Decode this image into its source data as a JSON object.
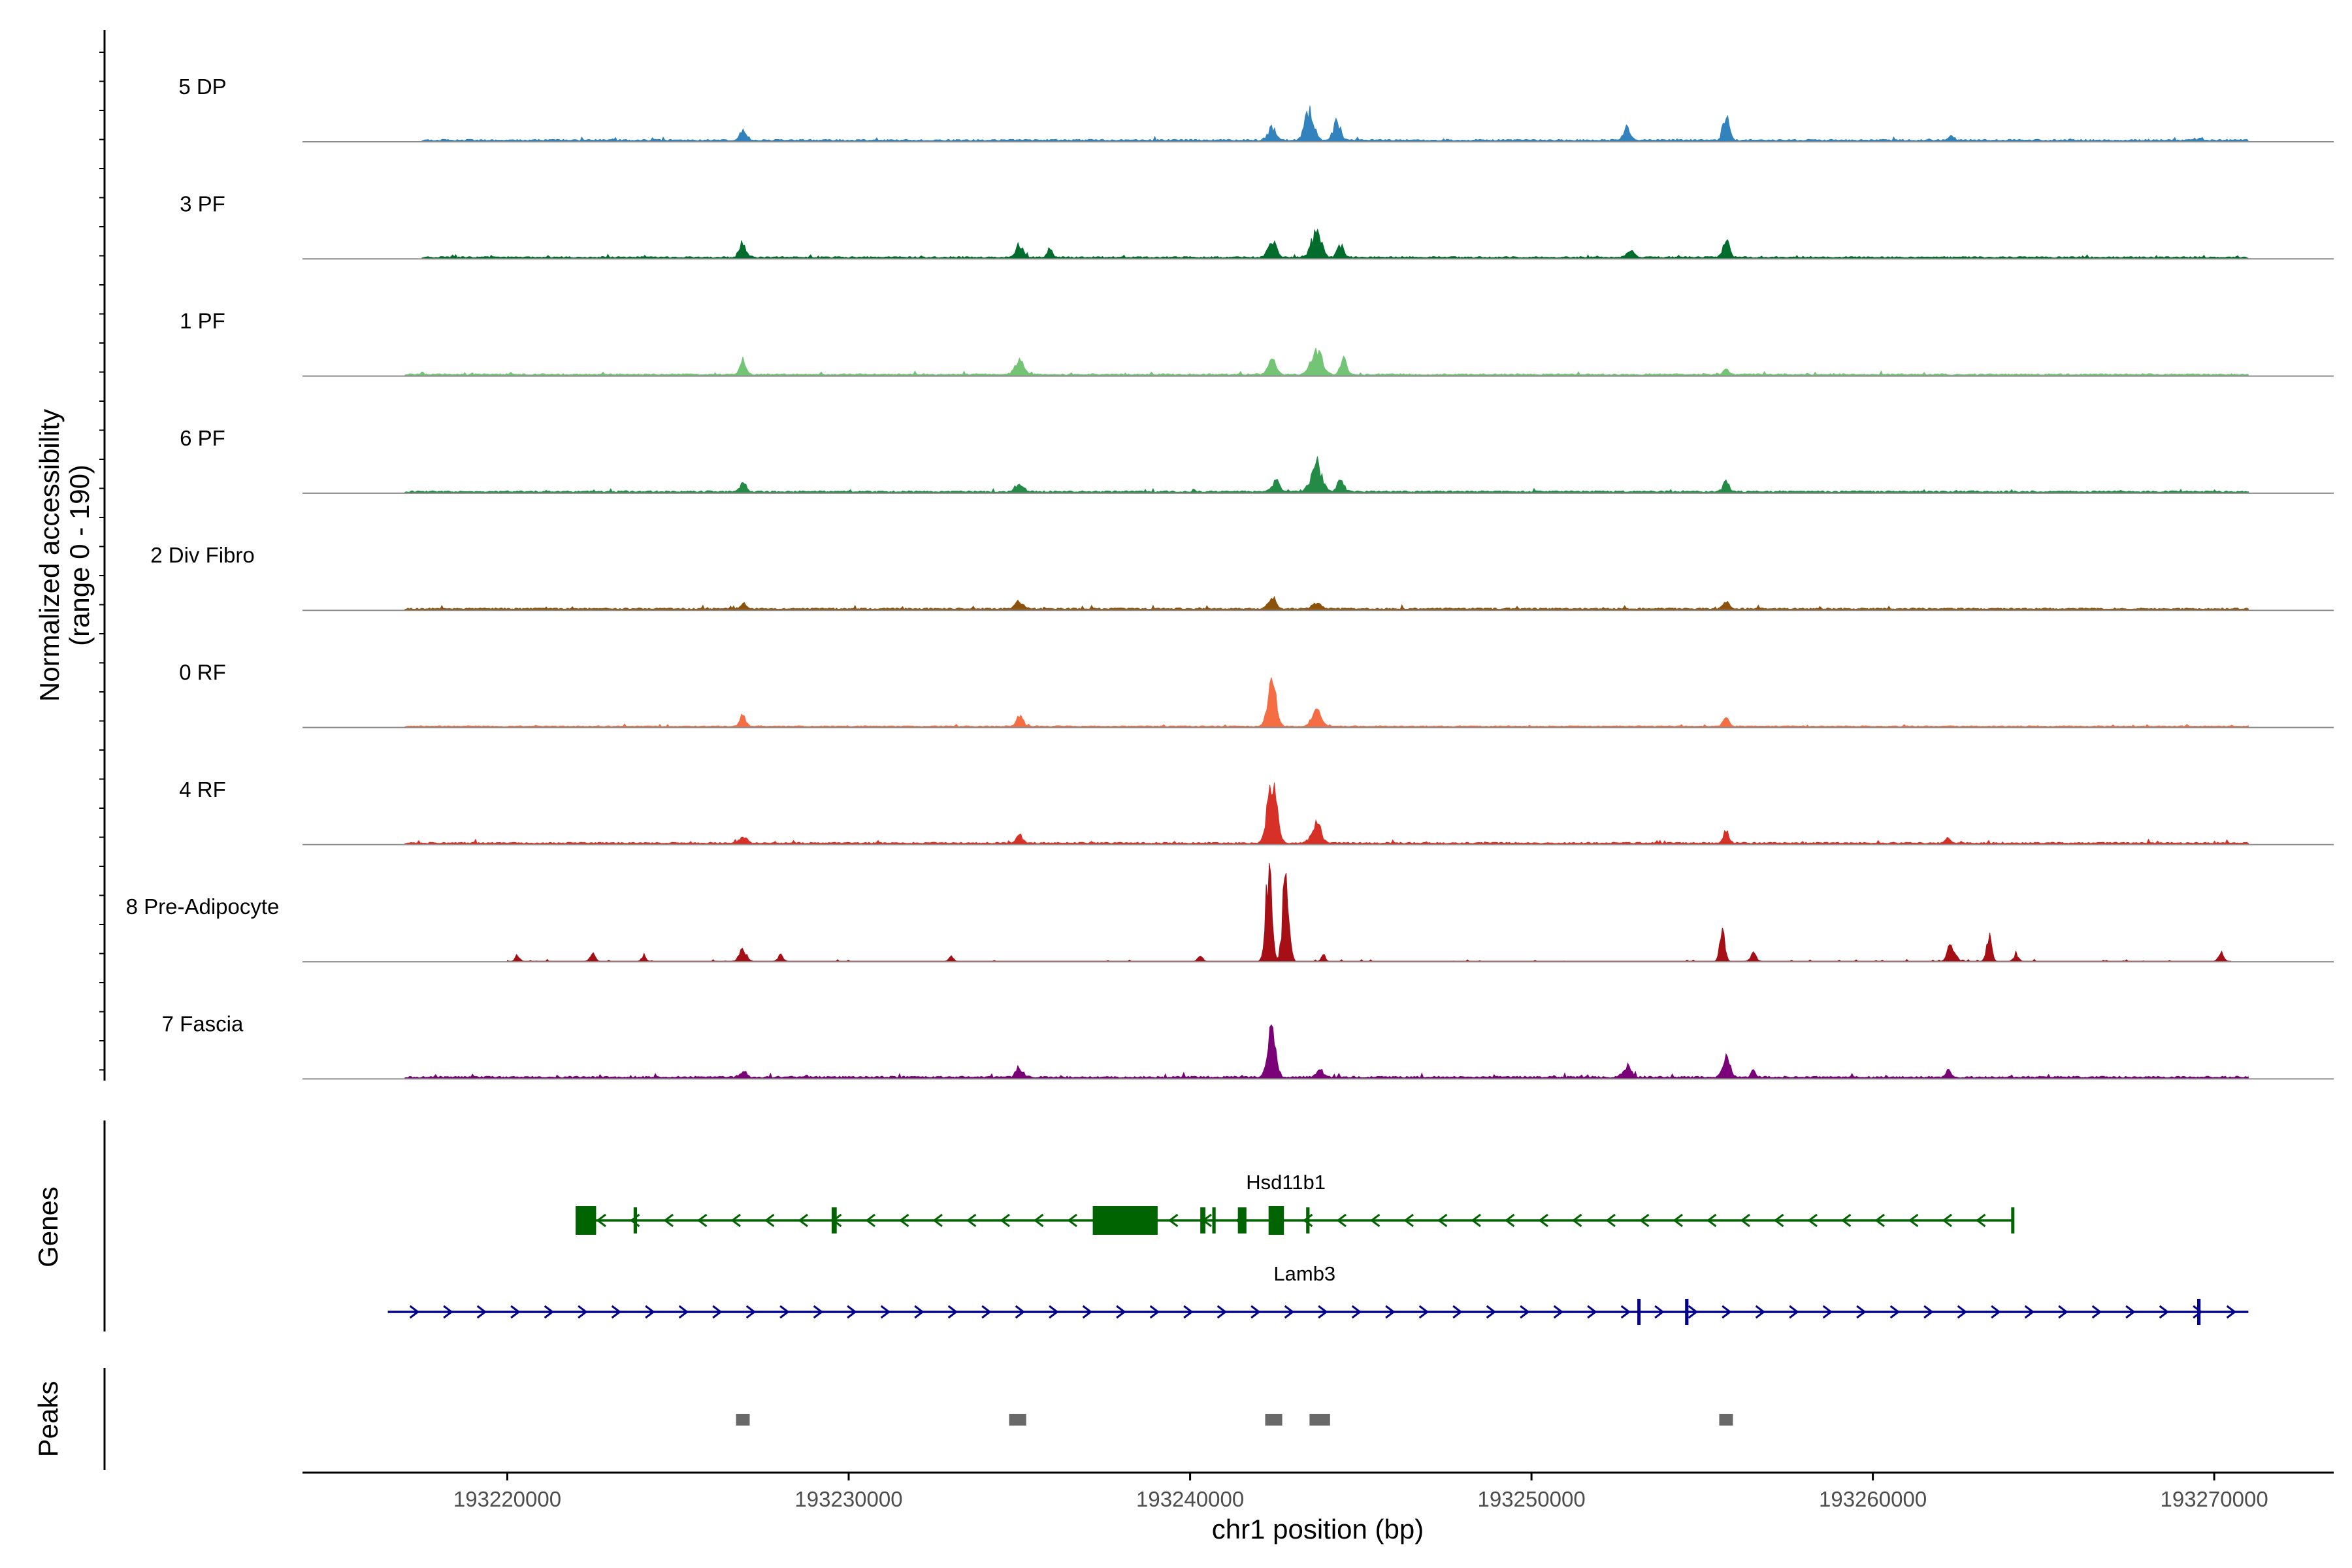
{
  "chart_data": {
    "type": "genome-coverage-tracks",
    "title": "",
    "ylabel": "Normalized accessibility\n(range 0 - 190)",
    "y_range": [
      0,
      190
    ],
    "xlabel": "chr1 position (bp)",
    "xlim": [
      193214000,
      193273500
    ],
    "x_ticks": [
      193220000,
      193230000,
      193240000,
      193250000,
      193260000,
      193270000
    ],
    "x_tick_labels": [
      "193220000",
      "193230000",
      "193240000",
      "193250000",
      "193260000",
      "193270000"
    ],
    "panel_titles": [
      "Genes",
      "Peaks"
    ],
    "tracks": [
      {
        "name": "5 DP",
        "color": "#3182bd",
        "start": 193217500,
        "end": 193271000,
        "baseline": 2.5,
        "peaks": [
          [
            193226900,
            20,
            130
          ],
          [
            193242400,
            22,
            180
          ],
          [
            193243500,
            55,
            200
          ],
          [
            193244300,
            32,
            160
          ],
          [
            193252800,
            20,
            160
          ],
          [
            193255700,
            40,
            140
          ],
          [
            193262300,
            8,
            120
          ],
          [
            193269600,
            4,
            100
          ]
        ]
      },
      {
        "name": "3 PF",
        "color": "#006d2c",
        "start": 193217500,
        "end": 193271000,
        "baseline": 2.5,
        "peaks": [
          [
            193226900,
            30,
            130
          ],
          [
            193235000,
            22,
            150
          ],
          [
            193235900,
            15,
            110
          ],
          [
            193242400,
            30,
            180
          ],
          [
            193243700,
            45,
            220
          ],
          [
            193244400,
            22,
            140
          ],
          [
            193252900,
            12,
            150
          ],
          [
            193255700,
            27,
            150
          ]
        ]
      },
      {
        "name": "1 PF",
        "color": "#74c476",
        "start": 193217000,
        "end": 193271000,
        "baseline": 2.5,
        "peaks": [
          [
            193226900,
            25,
            130
          ],
          [
            193235000,
            24,
            200
          ],
          [
            193242400,
            24,
            170
          ],
          [
            193243700,
            47,
            240
          ],
          [
            193244500,
            25,
            150
          ],
          [
            193255700,
            10,
            120
          ]
        ]
      },
      {
        "name": "6 PF",
        "color": "#238b45",
        "start": 193217000,
        "end": 193271000,
        "baseline": 2.5,
        "peaks": [
          [
            193226900,
            16,
            130
          ],
          [
            193235000,
            14,
            180
          ],
          [
            193242500,
            18,
            170
          ],
          [
            193243700,
            50,
            240
          ],
          [
            193244400,
            22,
            150
          ],
          [
            193255700,
            18,
            130
          ]
        ]
      },
      {
        "name": "2 Div Fibro",
        "color": "#8c510a",
        "start": 193217000,
        "end": 193271000,
        "baseline": 2.5,
        "peaks": [
          [
            193226900,
            9,
            130
          ],
          [
            193235000,
            12,
            160
          ],
          [
            193242400,
            22,
            160
          ],
          [
            193243700,
            10,
            180
          ],
          [
            193255700,
            14,
            140
          ]
        ]
      },
      {
        "name": "0 RF",
        "color": "#f46d43",
        "start": 193217000,
        "end": 193271000,
        "baseline": 1.5,
        "peaks": [
          [
            193226900,
            20,
            120
          ],
          [
            193235000,
            22,
            130
          ],
          [
            193242400,
            70,
            190
          ],
          [
            193243700,
            28,
            200
          ],
          [
            193255700,
            18,
            120
          ]
        ]
      },
      {
        "name": "4 RF",
        "color": "#d73027",
        "start": 193217000,
        "end": 193271000,
        "baseline": 2.5,
        "peaks": [
          [
            193226900,
            12,
            150
          ],
          [
            193235000,
            14,
            150
          ],
          [
            193242400,
            110,
            200
          ],
          [
            193243700,
            35,
            200
          ],
          [
            193255700,
            20,
            130
          ],
          [
            193262200,
            10,
            100
          ]
        ]
      },
      {
        "name": "8 Pre-Adipocyte",
        "color": "#a50f15",
        "start": 193220000,
        "end": 193270500,
        "baseline": 1.5,
        "sparse": true,
        "peaks": [
          [
            193220300,
            12,
            90
          ],
          [
            193222500,
            12,
            110
          ],
          [
            193224000,
            12,
            90
          ],
          [
            193226900,
            22,
            150
          ],
          [
            193228000,
            12,
            110
          ],
          [
            193233000,
            10,
            90
          ],
          [
            193240300,
            12,
            90
          ],
          [
            193242300,
            150,
            140
          ],
          [
            193242800,
            150,
            140
          ],
          [
            193243900,
            12,
            80
          ],
          [
            193255600,
            60,
            110
          ],
          [
            193256500,
            15,
            120
          ],
          [
            193262300,
            30,
            160
          ],
          [
            193263400,
            45,
            110
          ],
          [
            193264200,
            14,
            100
          ],
          [
            193270200,
            14,
            110
          ]
        ]
      },
      {
        "name": "7 Fascia",
        "color": "#7a0177",
        "start": 193217000,
        "end": 193271000,
        "baseline": 3,
        "peaks": [
          [
            193226900,
            10,
            150
          ],
          [
            193235000,
            17,
            160
          ],
          [
            193242400,
            85,
            180
          ],
          [
            193243800,
            14,
            160
          ],
          [
            193252800,
            20,
            170
          ],
          [
            193255700,
            38,
            160
          ],
          [
            193256500,
            10,
            120
          ],
          [
            193262200,
            12,
            120
          ]
        ]
      }
    ],
    "genes": [
      {
        "name": "Hsd11b1",
        "color": "#006400",
        "strand": "-",
        "start": 193222000,
        "end": 193264100,
        "exons": [
          [
            193222000,
            193222600,
            "utr"
          ],
          [
            193223700,
            193223800,
            "thin"
          ],
          [
            193229500,
            193229650,
            "thin"
          ],
          [
            193237150,
            193239050,
            "thick"
          ],
          [
            193240300,
            193240450,
            "thin"
          ],
          [
            193240650,
            193240750,
            "thin"
          ],
          [
            193241400,
            193241650,
            "thin"
          ],
          [
            193242300,
            193242750,
            "thick"
          ],
          [
            193243400,
            193243500,
            "thin"
          ]
        ]
      },
      {
        "name": "Lamb3",
        "color": "#00008b",
        "strand": "+",
        "start": 193216500,
        "end": 193271000,
        "exons": [
          [
            193253100,
            193253150,
            "thin"
          ],
          [
            193254500,
            193254600,
            "thin"
          ],
          [
            193269500,
            193269600,
            "thin"
          ]
        ]
      }
    ],
    "peaks": [
      [
        193226700,
        193227100
      ],
      [
        193234700,
        193235200
      ],
      [
        193242200,
        193242700
      ],
      [
        193243500,
        193244100
      ],
      [
        193255500,
        193255900
      ]
    ],
    "peak_color": "#696969"
  }
}
